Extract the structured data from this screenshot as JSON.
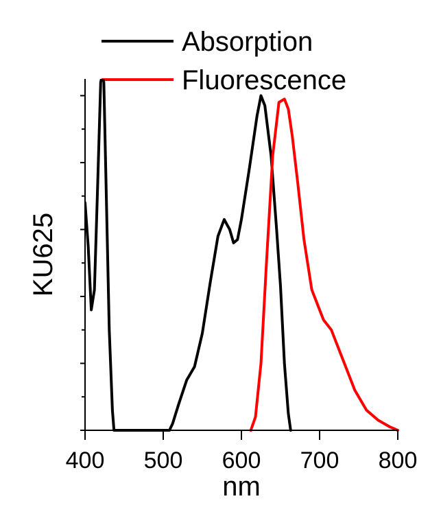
{
  "chart_data": {
    "type": "line",
    "xlabel": "nm",
    "ylabel": "KU625",
    "xlim": [
      400,
      800
    ],
    "ylim": [
      0,
      1.05
    ],
    "x_ticks": [
      400,
      500,
      600,
      700,
      800
    ],
    "x_tick_labels": [
      "400",
      "500",
      "600",
      "700",
      "800"
    ],
    "y_tick_labels_shown": false,
    "grid": false,
    "legend": "top-center",
    "series": [
      {
        "name": "Absorption",
        "color": "#000000",
        "x": [
          400,
          404,
          408,
          412,
          416,
          420,
          422,
          424,
          427,
          431,
          435,
          437,
          438,
          508,
          512,
          520,
          530,
          540,
          550,
          560,
          570,
          578,
          585,
          590,
          595,
          600,
          610,
          620,
          625,
          630,
          638,
          645,
          650,
          655,
          660,
          663
        ],
        "y": [
          0.68,
          0.55,
          0.36,
          0.42,
          0.72,
          1.04,
          1.06,
          1.04,
          0.72,
          0.3,
          0.06,
          0.0,
          0.0,
          0.0,
          0.02,
          0.08,
          0.15,
          0.19,
          0.29,
          0.44,
          0.58,
          0.63,
          0.6,
          0.56,
          0.57,
          0.63,
          0.78,
          0.94,
          1.0,
          0.97,
          0.82,
          0.6,
          0.43,
          0.2,
          0.05,
          0.0
        ]
      },
      {
        "name": "Fluorescence",
        "color": "#ff0000",
        "x": [
          612,
          618,
          625,
          632,
          640,
          648,
          655,
          660,
          665,
          672,
          680,
          690,
          700,
          705,
          715,
          725,
          735,
          745,
          760,
          775,
          790,
          800
        ],
        "y": [
          0.0,
          0.04,
          0.2,
          0.5,
          0.82,
          0.98,
          0.99,
          0.96,
          0.88,
          0.74,
          0.57,
          0.42,
          0.36,
          0.33,
          0.3,
          0.24,
          0.18,
          0.12,
          0.06,
          0.03,
          0.01,
          0.0
        ]
      }
    ]
  }
}
